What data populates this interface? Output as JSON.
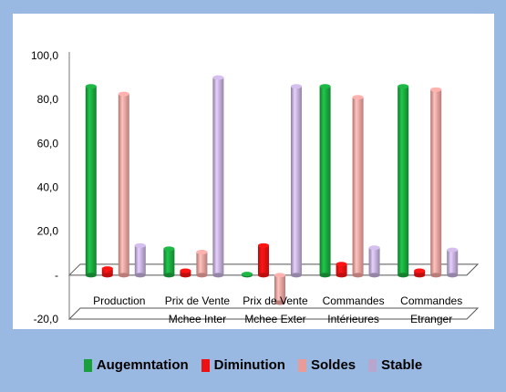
{
  "chart_data": {
    "type": "bar",
    "style": "3d-cylinder",
    "categories": [
      [
        "Production",
        ""
      ],
      [
        "Prix de Vente",
        "Mchee Inter"
      ],
      [
        "Prix de Vente",
        "Mchee Exter"
      ],
      [
        "Commandes",
        "Intérieures"
      ],
      [
        "Commandes",
        "Etranger"
      ]
    ],
    "series": [
      {
        "name": "Augemntation",
        "color": "#19a03c",
        "values": [
          86.0,
          12.0,
          0.5,
          86.0,
          86.0
        ]
      },
      {
        "name": "Diminution",
        "color": "#ee1111",
        "values": [
          3.0,
          2.0,
          13.5,
          5.0,
          2.0
        ]
      },
      {
        "name": "Soldes",
        "color": "#e89b97",
        "values": [
          82.5,
          10.5,
          -12.5,
          81.0,
          84.5
        ]
      },
      {
        "name": "Stable",
        "color": "#b9a6cf",
        "values": [
          13.5,
          90.0,
          86.0,
          12.5,
          11.5
        ]
      }
    ],
    "y_ticks": [
      "100,0",
      "80,0",
      "60,0",
      "40,0",
      "20,0",
      "-",
      "-20,0"
    ],
    "y_tick_values": [
      100,
      80,
      60,
      40,
      20,
      0,
      -20
    ],
    "ylim": [
      -20,
      100
    ],
    "legend_position": "bottom",
    "grid": false
  }
}
